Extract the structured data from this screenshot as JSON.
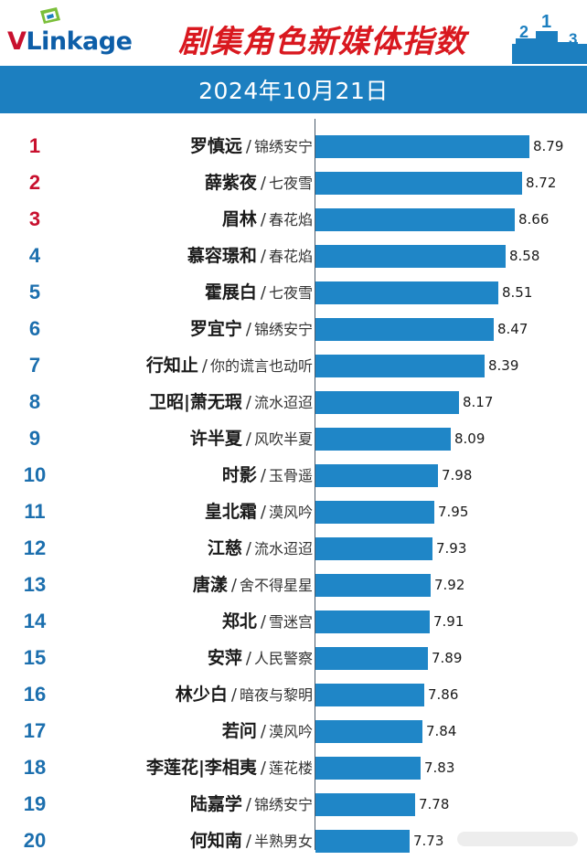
{
  "header": {
    "logo_text": "VLinkage",
    "title": "剧集角色新媒体指数",
    "date": "2024年10月21日"
  },
  "colors": {
    "title_red": "#d9181f",
    "banner_blue": "#1c7fc0",
    "bar_blue": "#1f86c7",
    "rank_top3": "#c8102e",
    "rank_rest": "#1c6fae"
  },
  "icons": {
    "logo_mark": "vlinkage-logo-icon",
    "podium": "podium-icon"
  },
  "chart_data": {
    "type": "bar",
    "orientation": "horizontal",
    "title": "剧集角色新媒体指数",
    "xlim": [
      6.9,
      8.9
    ],
    "grid": false,
    "rows": [
      {
        "rank": "1",
        "name": "罗慎远",
        "show": "锦绣安宁",
        "value": 8.79,
        "value_label": "8.79"
      },
      {
        "rank": "2",
        "name": "薛紫夜",
        "show": "七夜雪",
        "value": 8.72,
        "value_label": "8.72"
      },
      {
        "rank": "3",
        "name": "眉林",
        "show": "春花焰",
        "value": 8.66,
        "value_label": "8.66"
      },
      {
        "rank": "4",
        "name": "慕容璟和",
        "show": "春花焰",
        "value": 8.58,
        "value_label": "8.58"
      },
      {
        "rank": "5",
        "name": "霍展白",
        "show": "七夜雪",
        "value": 8.51,
        "value_label": "8.51"
      },
      {
        "rank": "6",
        "name": "罗宜宁",
        "show": "锦绣安宁",
        "value": 8.47,
        "value_label": "8.47"
      },
      {
        "rank": "7",
        "name": "行知止",
        "show": "你的谎言也动听",
        "value": 8.39,
        "value_label": "8.39"
      },
      {
        "rank": "8",
        "name": "卫昭|萧无瑕",
        "show": "流水迢迢",
        "value": 8.17,
        "value_label": "8.17"
      },
      {
        "rank": "9",
        "name": "许半夏",
        "show": "风吹半夏",
        "value": 8.09,
        "value_label": "8.09"
      },
      {
        "rank": "10",
        "name": "时影",
        "show": "玉骨遥",
        "value": 7.98,
        "value_label": "7.98"
      },
      {
        "rank": "11",
        "name": "皇北霜",
        "show": "漠风吟",
        "value": 7.95,
        "value_label": "7.95"
      },
      {
        "rank": "12",
        "name": "江慈",
        "show": "流水迢迢",
        "value": 7.93,
        "value_label": "7.93"
      },
      {
        "rank": "13",
        "name": "唐漾",
        "show": "舍不得星星",
        "value": 7.92,
        "value_label": "7.92"
      },
      {
        "rank": "14",
        "name": "郑北",
        "show": "雪迷宫",
        "value": 7.91,
        "value_label": "7.91"
      },
      {
        "rank": "15",
        "name": "安萍",
        "show": "人民警察",
        "value": 7.89,
        "value_label": "7.89"
      },
      {
        "rank": "16",
        "name": "林少白",
        "show": "暗夜与黎明",
        "value": 7.86,
        "value_label": "7.86"
      },
      {
        "rank": "17",
        "name": "若问",
        "show": "漠风吟",
        "value": 7.84,
        "value_label": "7.84"
      },
      {
        "rank": "18",
        "name": "李莲花|李相夷",
        "show": "莲花楼",
        "value": 7.83,
        "value_label": "7.83"
      },
      {
        "rank": "19",
        "name": "陆嘉学",
        "show": "锦绣安宁",
        "value": 7.78,
        "value_label": "7.78"
      },
      {
        "rank": "20",
        "name": "何知南",
        "show": "半熟男女",
        "value": 7.73,
        "value_label": "7.73"
      }
    ]
  }
}
